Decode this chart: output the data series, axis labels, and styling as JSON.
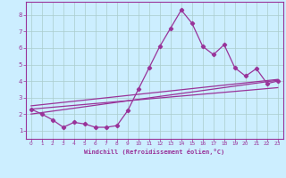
{
  "xlabel": "Windchill (Refroidissement éolien,°C)",
  "bg_color": "#cceeff",
  "grid_color": "#aacccc",
  "line_color": "#993399",
  "xlim": [
    -0.5,
    23.5
  ],
  "ylim": [
    0.5,
    8.8
  ],
  "xticks": [
    0,
    1,
    2,
    3,
    4,
    5,
    6,
    7,
    8,
    9,
    10,
    11,
    12,
    13,
    14,
    15,
    16,
    17,
    18,
    19,
    20,
    21,
    22,
    23
  ],
  "yticks": [
    1,
    2,
    3,
    4,
    5,
    6,
    7,
    8
  ],
  "series1_x": [
    0,
    1,
    2,
    3,
    4,
    5,
    6,
    7,
    8,
    9,
    10,
    11,
    12,
    13,
    14,
    15,
    16,
    17,
    18,
    19,
    20,
    21,
    22,
    23
  ],
  "series1_y": [
    2.3,
    2.0,
    1.65,
    1.2,
    1.5,
    1.4,
    1.2,
    1.2,
    1.3,
    2.2,
    3.5,
    4.8,
    6.1,
    7.2,
    8.3,
    7.5,
    6.1,
    5.6,
    6.2,
    4.8,
    4.3,
    4.75,
    3.85,
    4.0
  ],
  "line1_x": [
    0,
    23
  ],
  "line1_y": [
    2.0,
    4.05
  ],
  "line2_x": [
    0,
    23
  ],
  "line2_y": [
    2.3,
    3.6
  ],
  "line3_x": [
    0,
    23
  ],
  "line3_y": [
    2.5,
    4.1
  ]
}
